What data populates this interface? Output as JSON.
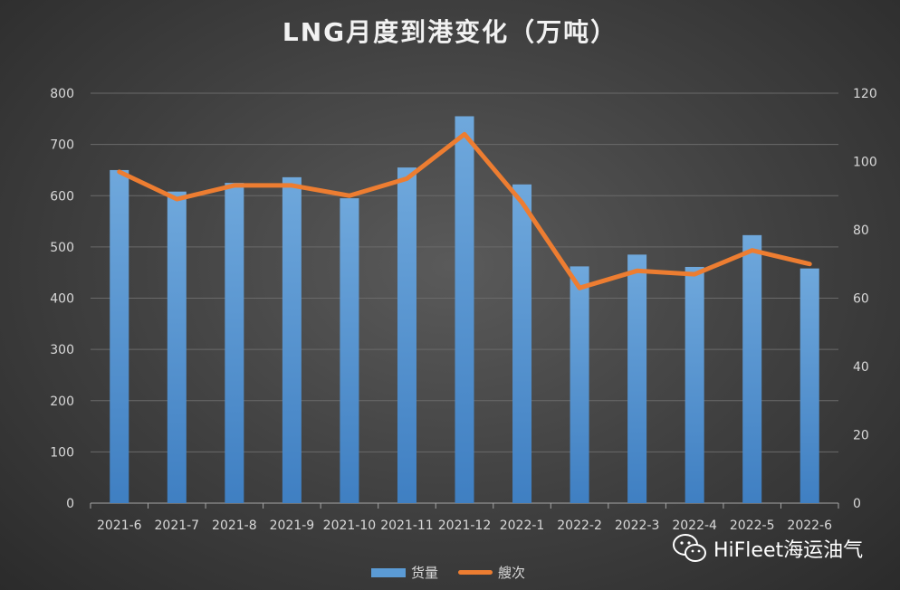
{
  "chart_data": {
    "type": "bar",
    "title": "LNG月度到港变化（万吨）",
    "categories": [
      "2021-6",
      "2021-7",
      "2021-8",
      "2021-9",
      "2021-10",
      "2021-11",
      "2021-12",
      "2022-1",
      "2022-2",
      "2022-3",
      "2022-4",
      "2022-5",
      "2022-6"
    ],
    "series": [
      {
        "name": "货量",
        "type": "bar",
        "axis": "left",
        "color": "#5b9bd5",
        "values": [
          650,
          608,
          625,
          636,
          595,
          655,
          755,
          622,
          462,
          485,
          461,
          523,
          458
        ]
      },
      {
        "name": "艘次",
        "type": "line",
        "axis": "right",
        "color": "#ed7d31",
        "values": [
          97,
          89,
          93,
          93,
          90,
          95,
          108,
          88,
          63,
          68,
          67,
          74,
          70
        ]
      }
    ],
    "y_left": {
      "min": 0,
      "max": 800,
      "ticks": [
        0,
        100,
        200,
        300,
        400,
        500,
        600,
        700,
        800
      ]
    },
    "y_right": {
      "min": 0,
      "max": 120,
      "ticks": [
        0,
        20,
        40,
        60,
        80,
        100,
        120
      ]
    },
    "grid": true,
    "legend_position": "bottom"
  },
  "watermark": {
    "text": "HiFleet海运油气",
    "icon": "wechat-icon"
  }
}
